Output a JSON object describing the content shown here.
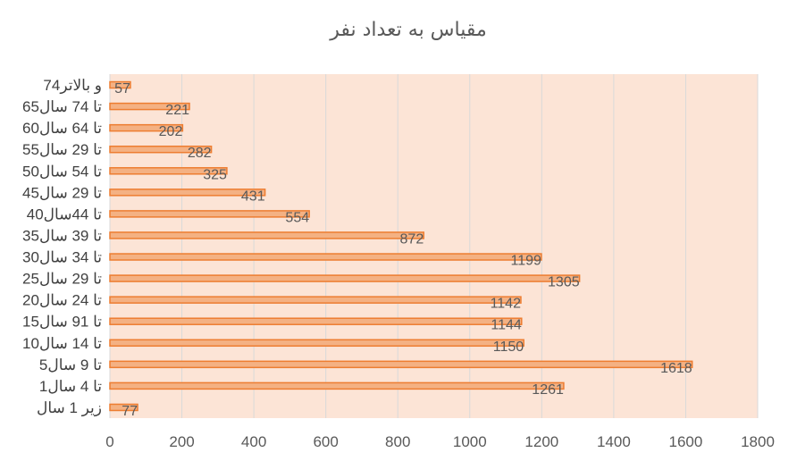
{
  "chart_data": {
    "type": "bar",
    "orientation": "horizontal",
    "title": "مقیاس به تعداد نفر",
    "categories": [
      "زیر 1 سال",
      "1تا 4 سال",
      "5تا 9 سال",
      "10تا 14 سال",
      "15تا 91 سال",
      "20تا 24 سال",
      "25تا 29 سال",
      "30تا 34 سال",
      "35تا 39 سال",
      "40تا 44سال",
      "45تا 29 سال",
      "50تا 54 سال",
      "55تا 29 سال",
      "60تا 64 سال",
      "65تا 74 سال",
      "74و بالاتر"
    ],
    "values": [
      77,
      1261,
      1618,
      1150,
      1144,
      1142,
      1305,
      1199,
      872,
      554,
      431,
      325,
      282,
      202,
      221,
      57
    ],
    "xlim": [
      0,
      1800
    ],
    "x_ticks": [
      0,
      200,
      400,
      600,
      800,
      1000,
      1200,
      1400,
      1600,
      1800
    ],
    "grid": true,
    "legend": "none",
    "colors": {
      "plot_background": "#fce4d6",
      "bar_fill": "#f4b183",
      "bar_border": "#ed7d31",
      "gridline": "#d9d9d9",
      "text": "#595959"
    }
  }
}
